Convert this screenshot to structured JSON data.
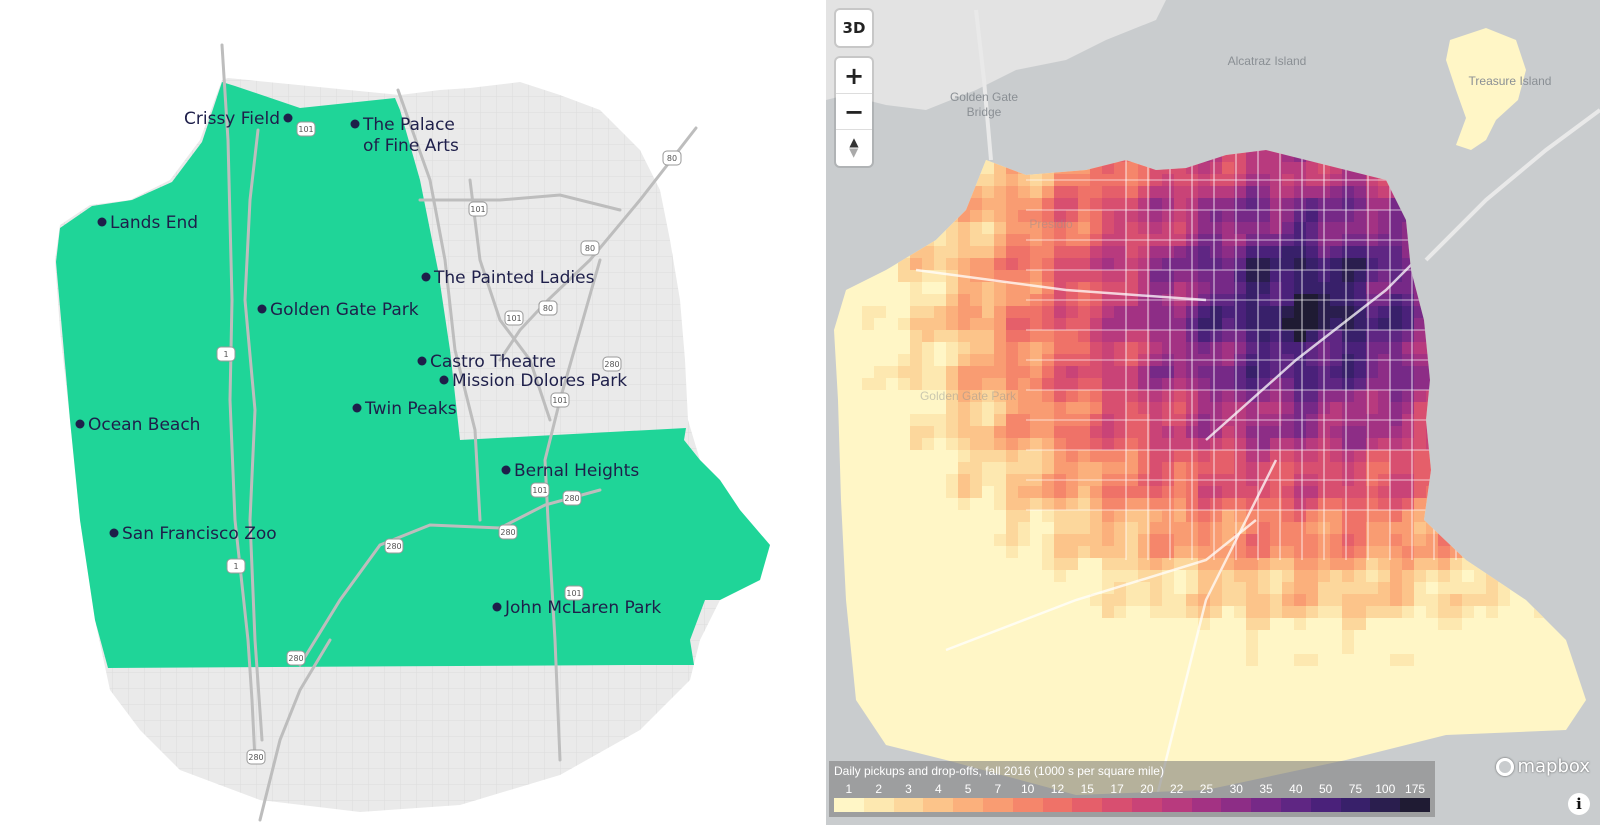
{
  "left_map": {
    "colors": {
      "region": "#14d493",
      "land": "#eaeaea",
      "road": "#bdbdbd",
      "label": "#1e1f4a"
    },
    "places": [
      {
        "name": "Crissy Field"
      },
      {
        "name": "The Palace\nof Fine Arts"
      },
      {
        "name": "Lands End"
      },
      {
        "name": "The Painted Ladies"
      },
      {
        "name": "Golden Gate Park"
      },
      {
        "name": "Castro Theatre"
      },
      {
        "name": "Mission Dolores Park"
      },
      {
        "name": "Twin Peaks"
      },
      {
        "name": "Ocean Beach"
      },
      {
        "name": "Bernal Heights"
      },
      {
        "name": "San Francisco Zoo"
      },
      {
        "name": "John McLaren Park"
      }
    ],
    "shields": [
      "101",
      "80",
      "101",
      "80",
      "80",
      "101",
      "80",
      "280",
      "101",
      "101",
      "280",
      "280",
      "280",
      "101",
      "280",
      "1",
      "1",
      "280"
    ]
  },
  "right_map": {
    "controls": {
      "btn_3d": "3D",
      "zoom_in": "+",
      "zoom_out": "−",
      "compass": "▲"
    },
    "water_labels": [
      "Alcatraz Island",
      "Golden Gate\nBridge",
      "Treasure Island"
    ],
    "faint_labels": [
      "Presidio",
      "Golden Gate Park"
    ],
    "legend": {
      "title": "Daily pickups and drop-offs, fall 2016 (1000 s per square mile)",
      "ticks": [
        "1",
        "2",
        "3",
        "4",
        "5",
        "7",
        "10",
        "12",
        "15",
        "17",
        "20",
        "22",
        "25",
        "30",
        "35",
        "40",
        "50",
        "75",
        "100",
        "175"
      ],
      "colors": [
        "#fff6c6",
        "#fde8b0",
        "#fcd79c",
        "#fcc48a",
        "#fbb07c",
        "#f99c72",
        "#f5866b",
        "#ef7268",
        "#e55f6a",
        "#d84f70",
        "#c94377",
        "#b83a7e",
        "#a33283",
        "#8d2d86",
        "#762987",
        "#5f2683",
        "#4a217a",
        "#38206a",
        "#2a1e4e",
        "#1f1b33"
      ]
    },
    "attribution": "mapbox",
    "info": "i"
  }
}
